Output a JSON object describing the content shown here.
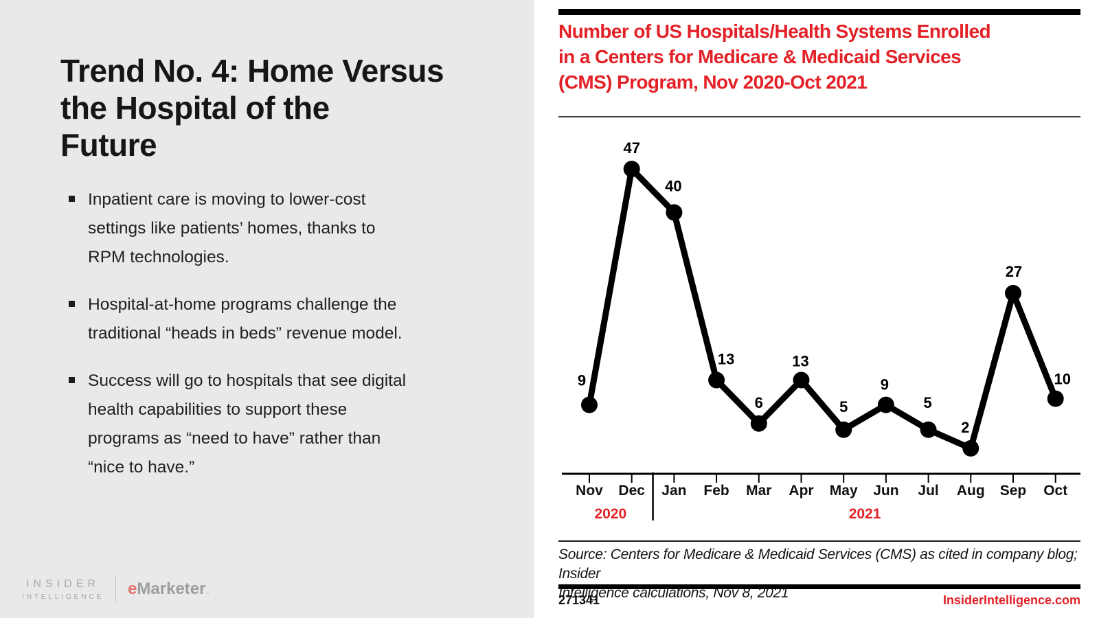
{
  "left_panel": {
    "title": "Trend No. 4: Home Versus\nthe Hospital of the\nFuture",
    "bullets": [
      "Inpatient care is moving to lower-cost\nsettings like patients’ homes, thanks to\nRPM technologies.",
      "Hospital-at-home programs challenge the\ntraditional “heads in beds” revenue model.",
      "Success will go to hospitals that see digital\nhealth capabilities to support these\nprograms as “need to have” rather than\n“nice to have.”"
    ],
    "footer": {
      "brand_line1": "INSIDER",
      "brand_line2": "INTELLIGENCE",
      "emarketer_e": "e",
      "emarketer_rest": "Marketer"
    }
  },
  "chart_panel": {
    "title": "Number of US Hospitals/Health Systems Enrolled\nin a Centers for Medicare & Medicaid Services\n(CMS) Program, Nov 2020-Oct 2021",
    "source": "Source: Centers for Medicare & Medicaid Services (CMS) as cited in company blog; Insider\nIntelligence calculations, Nov 8, 2021",
    "chart_id": "271341",
    "site": "InsiderIntelligence.com"
  },
  "chart_data": {
    "type": "line",
    "title": "Number of US Hospitals/Health Systems Enrolled in a Centers for Medicare & Medicaid Services (CMS) Program, Nov 2020-Oct 2021",
    "categories": [
      "Nov",
      "Dec",
      "Jan",
      "Feb",
      "Mar",
      "Apr",
      "May",
      "Jun",
      "Jul",
      "Aug",
      "Sep",
      "Oct"
    ],
    "values": [
      9,
      47,
      40,
      13,
      6,
      13,
      5,
      9,
      5,
      2,
      27,
      10
    ],
    "year_groups": [
      {
        "label": "2020",
        "start_index": 0,
        "end_index": 1
      },
      {
        "label": "2021",
        "start_index": 2,
        "end_index": 11
      }
    ],
    "xlabel": "",
    "ylabel": "",
    "ylim": [
      0,
      50
    ],
    "grid": false,
    "data_labels": true,
    "legend": "none",
    "colors": {
      "line": "#000000",
      "labels": "#000000",
      "year_labels": "#e32127",
      "axis": "#000000"
    }
  }
}
